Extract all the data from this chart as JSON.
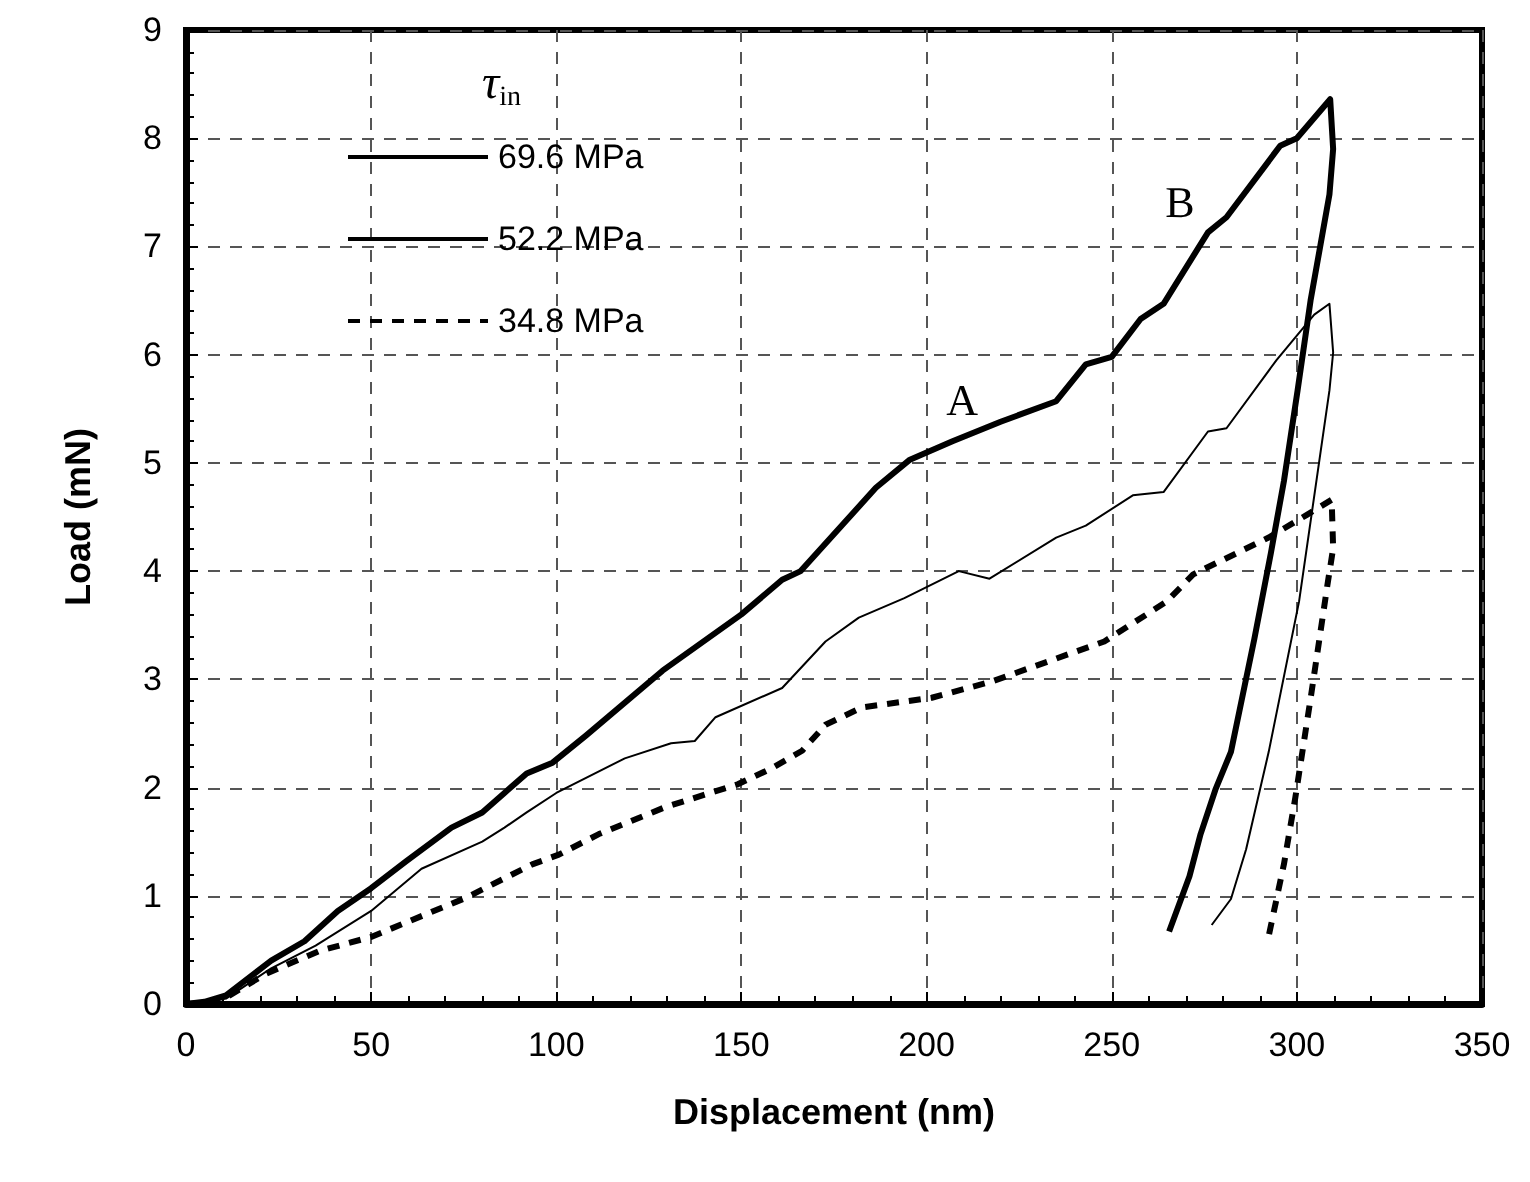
{
  "chart_data": {
    "type": "line",
    "xlabel": "Displacement (nm)",
    "ylabel": "Load (mN)",
    "legend_title": "τ$_{in}$",
    "xlim": [
      0,
      350
    ],
    "xticks": [
      0,
      50,
      100,
      150,
      200,
      250,
      300,
      350
    ],
    "ylim": [
      0,
      9
    ],
    "yticks": [
      0,
      1,
      2,
      3,
      4,
      5,
      6,
      7,
      8,
      9
    ],
    "grid": true,
    "legend": "top left",
    "series": [
      {
        "name": "69.6 MPa",
        "color": "#000000",
        "line_style": "solid",
        "x": [
          0,
          5,
          10.8,
          23,
          32,
          41,
          50,
          59.5,
          71.7,
          80,
          86,
          92,
          99,
          108,
          128.7,
          150,
          161,
          166,
          186.3,
          195.5,
          207,
          220,
          235,
          243,
          250,
          257.8,
          264,
          276,
          281,
          295.5,
          300,
          309,
          309.8,
          308.8,
          303.7,
          300.2,
          296.5,
          293,
          288.5,
          282.2,
          278,
          274,
          271,
          265.5
        ],
        "values": [
          0,
          0.02,
          0.08,
          0.4,
          0.58,
          0.86,
          1.07,
          1.32,
          1.63,
          1.77,
          1.95,
          2.13,
          2.23,
          2.48,
          3.08,
          3.6,
          3.92,
          4.0,
          4.77,
          5.03,
          5.2,
          5.38,
          5.57,
          5.91,
          5.98,
          6.33,
          6.47,
          7.13,
          7.27,
          7.93,
          8.0,
          8.36,
          7.9,
          7.48,
          6.5,
          5.67,
          4.83,
          4.17,
          3.37,
          2.33,
          1.98,
          1.57,
          1.18,
          0.67
        ]
      },
      {
        "name": "52.2 MPa",
        "color": "#000000",
        "line_style": "solid",
        "x": [
          0,
          5,
          10.8,
          23,
          35,
          50,
          63.6,
          80,
          86,
          92,
          100,
          118.5,
          131,
          137.4,
          143,
          161,
          172.7,
          181.7,
          194,
          208.7,
          217,
          235,
          243,
          255.7,
          264,
          276,
          281,
          294.5,
          304.7,
          308.8,
          309.8,
          308.8,
          300.6,
          292.4,
          286.3,
          282.2,
          277
        ],
        "values": [
          0,
          0.01,
          0.05,
          0.33,
          0.54,
          0.86,
          1.25,
          1.5,
          1.63,
          1.77,
          1.95,
          2.27,
          2.41,
          2.43,
          2.65,
          2.92,
          3.35,
          3.57,
          3.75,
          4.0,
          3.93,
          4.31,
          4.42,
          4.7,
          4.73,
          5.29,
          5.32,
          5.95,
          6.37,
          6.47,
          6.02,
          5.67,
          3.72,
          2.33,
          1.43,
          0.97,
          0.73
        ]
      },
      {
        "name": "34.8 MPa",
        "color": "#000000",
        "line_style": "dashed",
        "x": [
          0,
          5,
          10.8,
          21.6,
          36,
          50,
          75.5,
          93.5,
          100.7,
          111.5,
          129.5,
          149,
          158.3,
          166.4,
          172.7,
          182.5,
          201.4,
          217.6,
          248,
          264.9,
          272,
          292.4,
          302.7,
          309.4,
          309.8,
          308.2,
          303.7,
          299.6,
          296.5,
          292.4
        ],
        "values": [
          0,
          0.01,
          0.06,
          0.28,
          0.49,
          0.62,
          0.98,
          1.29,
          1.38,
          1.57,
          1.82,
          2.03,
          2.18,
          2.34,
          2.58,
          2.74,
          2.83,
          2.98,
          3.35,
          3.72,
          3.97,
          4.31,
          4.52,
          4.66,
          4.21,
          3.86,
          2.82,
          1.91,
          1.29,
          0.63
        ]
      }
    ],
    "annotations": [
      "A",
      "B"
    ]
  }
}
